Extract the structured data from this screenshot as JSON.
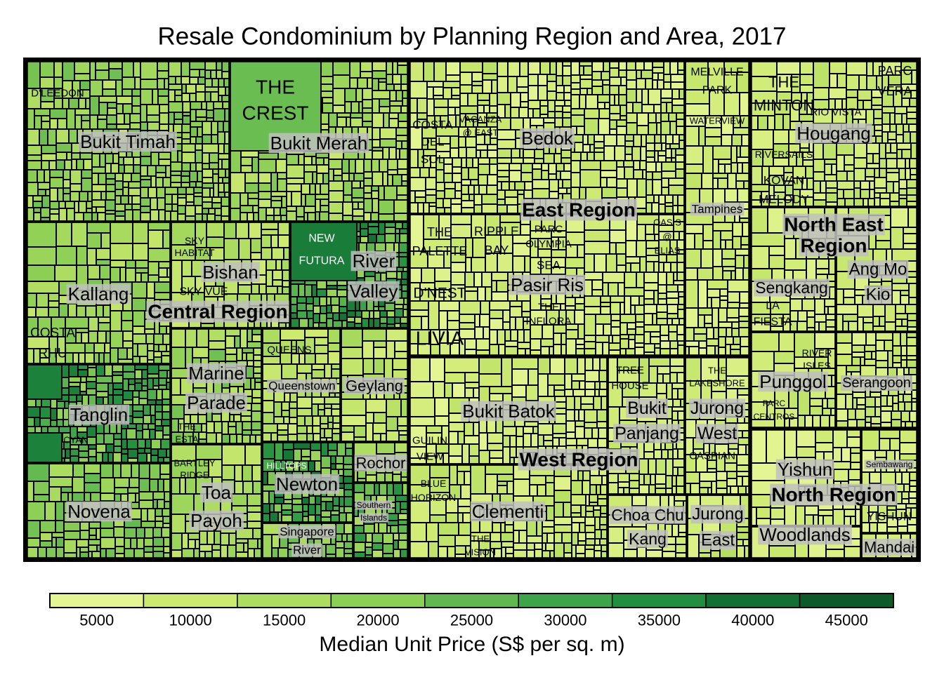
{
  "chart_data": {
    "type": "treemap",
    "title": "Resale Condominium by Planning Region and Area, 2017",
    "size_variable": "number of resale transactions",
    "color_variable": "Median Unit Price (S$ per sq. m)",
    "colorbar": {
      "label": "Median Unit Price (S$ per sq. m)",
      "ticks": [
        "5000",
        "10000",
        "15000",
        "20000",
        "25000",
        "30000",
        "35000",
        "40000",
        "45000"
      ],
      "colors": [
        "#e4f594",
        "#cce970",
        "#acdc60",
        "#8ccf55",
        "#62b850",
        "#3ea44a",
        "#228f40",
        "#146f34",
        "#0c5a2a"
      ],
      "range": [
        2500,
        47500
      ]
    },
    "regions": [
      {
        "name": "Central Region",
        "areas": [
          {
            "name": "Bukit Timah",
            "price_range": [
              12000,
              24000
            ],
            "projects": [
              "D'LEEDON"
            ]
          },
          {
            "name": "Bukit Merah",
            "price_range": [
              10000,
              22000
            ],
            "projects": [
              "THE CREST"
            ]
          },
          {
            "name": "Kallang",
            "price_range": [
              11000,
              22000
            ],
            "projects": [
              "COSTA RHU"
            ]
          },
          {
            "name": "Bishan",
            "price_range": [
              9000,
              18000
            ],
            "projects": [
              "SKY HABITAT",
              "SKY VUE"
            ]
          },
          {
            "name": "River Valley",
            "price_range": [
              15000,
              40000
            ],
            "projects": [
              "NEW FUTURA"
            ]
          },
          {
            "name": "Tanglin",
            "price_range": [
              17000,
              38000
            ],
            "projects": [
              "CYAN"
            ]
          },
          {
            "name": "Novena",
            "price_range": [
              14000,
              25000
            ],
            "projects": []
          },
          {
            "name": "Marine Parade",
            "price_range": [
              11000,
              24000
            ],
            "projects": [
              "THE ESTA"
            ]
          },
          {
            "name": "Queenstown",
            "price_range": [
              9000,
              17000
            ],
            "projects": [
              "QUEENS"
            ]
          },
          {
            "name": "Geylang",
            "price_range": [
              8000,
              16000
            ],
            "projects": []
          },
          {
            "name": "Toa Payoh",
            "price_range": [
              11000,
              19000
            ],
            "projects": [
              "BARTLEY RIDGE"
            ]
          },
          {
            "name": "Newton",
            "price_range": [
              17000,
              40000
            ],
            "projects": [
              "HILLTOPS"
            ]
          },
          {
            "name": "Singapore River",
            "price_range": [
              14000,
              25000
            ],
            "projects": []
          },
          {
            "name": "Rochor",
            "price_range": [
              13000,
              20000
            ],
            "projects": []
          },
          {
            "name": "Southern Islands",
            "price_range": [
              13000,
              35000
            ],
            "projects": []
          }
        ]
      },
      {
        "name": "East Region",
        "areas": [
          {
            "name": "Bedok",
            "price_range": [
              5000,
              13000
            ],
            "projects": [
              "COSTA DEL SOL",
              "VACANZA @ EAST"
            ]
          },
          {
            "name": "Tampines",
            "price_range": [
              5000,
              12000
            ],
            "projects": [
              "MELVILLE PARK",
              "WATERVIEW"
            ]
          },
          {
            "name": "Pasir Ris",
            "price_range": [
              5000,
              11000
            ],
            "projects": [
              "THE PALETTE",
              "RIPPLE BAY",
              "PARC OLYMPIA",
              "OASIS @ ELIAS",
              "SEA",
              "THE INFLORA",
              "D'NEST",
              "LIVIA"
            ]
          }
        ]
      },
      {
        "name": "West Region",
        "areas": [
          {
            "name": "Bukit Batok",
            "price_range": [
              5000,
              12000
            ],
            "projects": [
              "GUILIN VIEW"
            ]
          },
          {
            "name": "Clementi",
            "price_range": [
              6000,
              14000
            ],
            "projects": [
              "BLUE HORIZON",
              "THE VISION"
            ]
          },
          {
            "name": "Bukit Panjang",
            "price_range": [
              6000,
              12000
            ],
            "projects": [
              "TREE HOUSE"
            ]
          },
          {
            "name": "Jurong West",
            "price_range": [
              5000,
              11000
            ],
            "projects": [
              "THE LAKESHORE",
              "CASPIAN"
            ]
          },
          {
            "name": "Choa Chu Kang",
            "price_range": [
              5000,
              10000
            ],
            "projects": []
          },
          {
            "name": "Jurong East",
            "price_range": [
              6000,
              14000
            ],
            "projects": []
          }
        ]
      },
      {
        "name": "North East Region",
        "areas": [
          {
            "name": "Hougang",
            "price_range": [
              6000,
              13000
            ],
            "projects": [
              "THE MINTON",
              "PARC VERA",
              "RIO VISTA",
              "RIVERSAILS",
              "KOVAN MELODY"
            ]
          },
          {
            "name": "Sengkang",
            "price_range": [
              6000,
              11000
            ],
            "projects": [
              "LA FIESTA"
            ]
          },
          {
            "name": "Ang Mo Kio",
            "price_range": [
              6000,
              12000
            ],
            "projects": []
          },
          {
            "name": "Punggol",
            "price_range": [
              6000,
              12000
            ],
            "projects": [
              "RIVER ISLES",
              "PARC CENTROS"
            ]
          },
          {
            "name": "Serangoon",
            "price_range": [
              6000,
              13000
            ],
            "projects": []
          }
        ]
      },
      {
        "name": "North Region",
        "areas": [
          {
            "name": "Yishun",
            "price_range": [
              5000,
              10000
            ],
            "projects": []
          },
          {
            "name": "Woodlands",
            "price_range": [
              5000,
              11000
            ],
            "projects": []
          },
          {
            "name": "Sembawang",
            "price_range": [
              5000,
              11000
            ],
            "projects": [
              "YISHUN"
            ]
          },
          {
            "name": "Mandai",
            "price_range": [
              5000,
              10000
            ],
            "projects": []
          }
        ]
      }
    ]
  }
}
